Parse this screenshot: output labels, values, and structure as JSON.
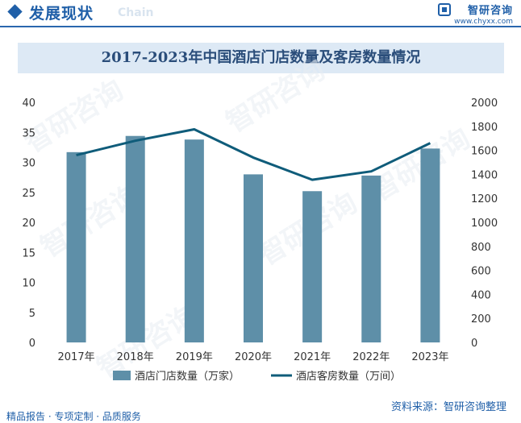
{
  "header": {
    "title": "发展现状",
    "subtitle_en": "Chain",
    "brand_name": "智研咨询",
    "brand_url": "www.chyxx.com"
  },
  "watermark": "智研咨询",
  "footer": {
    "tagline": "精品报告 · 专项定制 · 品质服务",
    "source": "资料来源：智研咨询整理"
  },
  "colors": {
    "bar": "#5e8fa8",
    "line": "#0f5c7a",
    "accent": "#1f5fa8",
    "title_band": "#dde9f5"
  },
  "chart_data": {
    "type": "bar",
    "title": "2017-2023年中国酒店门店数量及客房数量情况",
    "categories": [
      "2017年",
      "2018年",
      "2019年",
      "2020年",
      "2021年",
      "2022年",
      "2023年"
    ],
    "series": [
      {
        "name": "酒店门店数量（万家）",
        "type": "bar",
        "axis": "left",
        "values": [
          31.7,
          34.4,
          33.8,
          28.0,
          25.2,
          27.8,
          32.3
        ]
      },
      {
        "name": "酒店客房数量（万间）",
        "type": "line",
        "axis": "right",
        "values": [
          1560,
          1680,
          1775,
          1540,
          1355,
          1425,
          1660
        ]
      }
    ],
    "y_left": {
      "min": 0,
      "max": 40,
      "ticks": [
        0,
        5,
        10,
        15,
        20,
        25,
        30,
        35,
        40
      ]
    },
    "y_right": {
      "min": 0,
      "max": 2000,
      "ticks": [
        0,
        200,
        400,
        600,
        800,
        1000,
        1200,
        1400,
        1600,
        1800,
        2000
      ]
    },
    "grid": false,
    "legend_position": "bottom"
  }
}
